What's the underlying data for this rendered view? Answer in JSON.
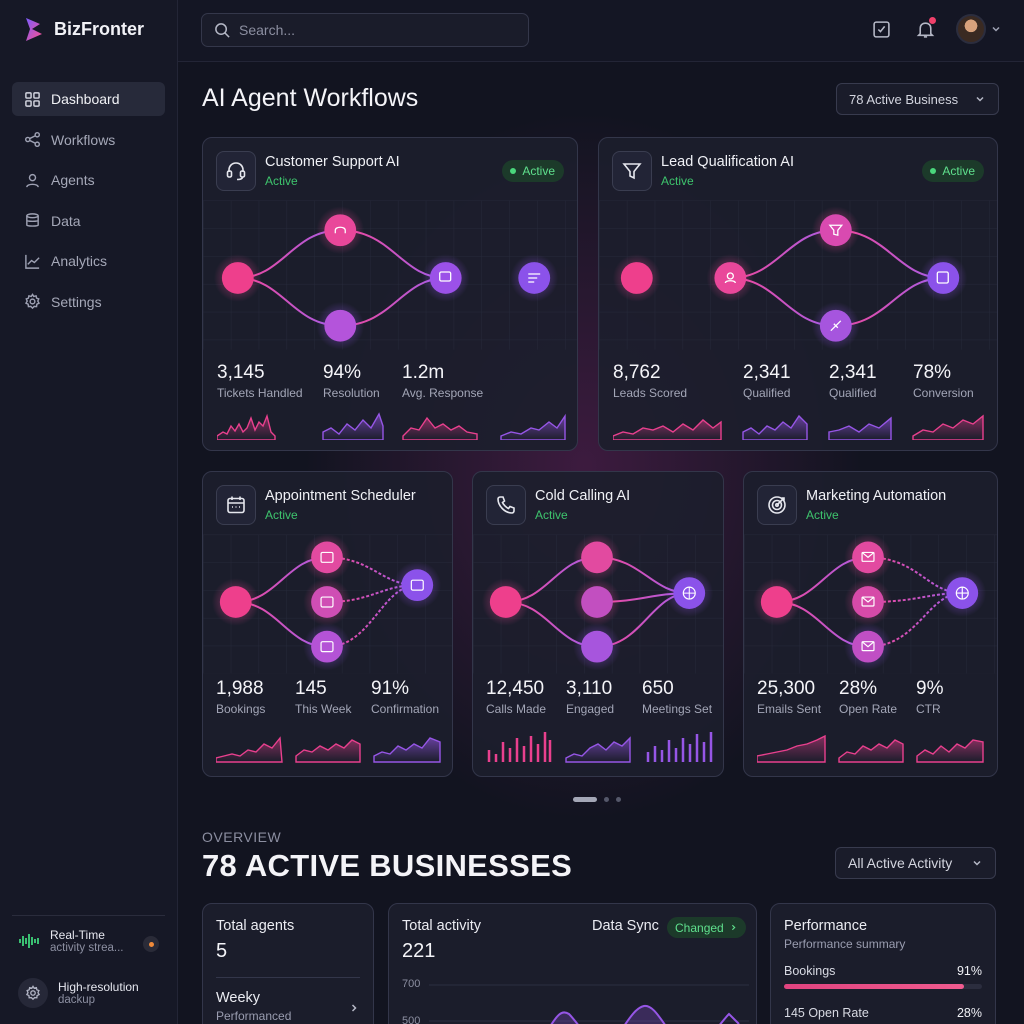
{
  "app": {
    "name": "BizFronter"
  },
  "search": {
    "placeholder": "Search..."
  },
  "sidebar": {
    "items": [
      {
        "label": "Dashboard",
        "icon": "grid-icon"
      },
      {
        "label": "Workflows",
        "icon": "share-icon"
      },
      {
        "label": "Agents",
        "icon": "user-icon"
      },
      {
        "label": "Data",
        "icon": "database-icon"
      },
      {
        "label": "Analytics",
        "icon": "chart-line-icon"
      },
      {
        "label": "Settings",
        "icon": "gear-icon"
      }
    ],
    "footer": [
      {
        "title": "Real-Time",
        "subtitle": "activity strea..."
      },
      {
        "title": "High-resolution",
        "subtitle": "dackup"
      }
    ]
  },
  "header": {
    "title": "AI Agent Workflows",
    "business_filter": "78 Active Business"
  },
  "workflows": [
    {
      "title": "Customer Support AI",
      "status": "Active",
      "badge": "Active",
      "icon": "headset-icon",
      "stats": [
        {
          "value": "3,145",
          "label": "Tickets Handled"
        },
        {
          "value": "94%",
          "label": "Resolution"
        },
        {
          "value": "1.2m",
          "label": "Avg. Response"
        }
      ]
    },
    {
      "title": "Lead Qualification AI",
      "status": "Active",
      "badge": "Active",
      "icon": "filter-icon",
      "stats": [
        {
          "value": "8,762",
          "label": "Leads Scored"
        },
        {
          "value": "2,341",
          "label": "Qualified"
        },
        {
          "value": "2,341",
          "label": "Qualified"
        },
        {
          "value": "78%",
          "label": "Conversion"
        }
      ]
    },
    {
      "title": "Appointment Scheduler",
      "status": "Active",
      "icon": "calendar-icon",
      "stats": [
        {
          "value": "1,988",
          "label": "Bookings"
        },
        {
          "value": "145",
          "label": "This Week"
        },
        {
          "value": "91%",
          "label": "Confirmation"
        }
      ]
    },
    {
      "title": "Cold Calling AI",
      "status": "Active",
      "icon": "phone-icon",
      "stats": [
        {
          "value": "12,450",
          "label": "Calls Made"
        },
        {
          "value": "3,110",
          "label": "Engaged"
        },
        {
          "value": "650",
          "label": "Meetings Set"
        }
      ]
    },
    {
      "title": "Marketing Automation",
      "status": "Active",
      "icon": "target-icon",
      "stats": [
        {
          "value": "25,300",
          "label": "Emails Sent"
        },
        {
          "value": "28%",
          "label": "Open Rate"
        },
        {
          "value": "9%",
          "label": "CTR"
        }
      ]
    }
  ],
  "overview": {
    "label": "OVERVIEW",
    "title": "78 ACTIVE BUSINESSES",
    "activity_filter": "All Active Activity",
    "total_agents": {
      "title": "Total agents",
      "value": "5",
      "weekly_label": "Weeky",
      "weekly_sub": "Performanced"
    },
    "total_activity": {
      "title": "Total activity",
      "value": "221",
      "sync_label": "Data Sync",
      "sync_badge": "Changed",
      "y_ticks": [
        "700",
        "500"
      ]
    },
    "performance": {
      "title": "Performance",
      "subtitle": "Performance summary",
      "rows": [
        {
          "label": "Bookings",
          "value": "91%",
          "fraction": 0.91
        },
        {
          "label": "145 Open Rate",
          "value": "28%",
          "fraction": 0.28
        }
      ]
    }
  },
  "colors": {
    "accent_pink": "#ec4c8c",
    "accent_purple": "#9b5de5",
    "active_green": "#3ec46d"
  }
}
